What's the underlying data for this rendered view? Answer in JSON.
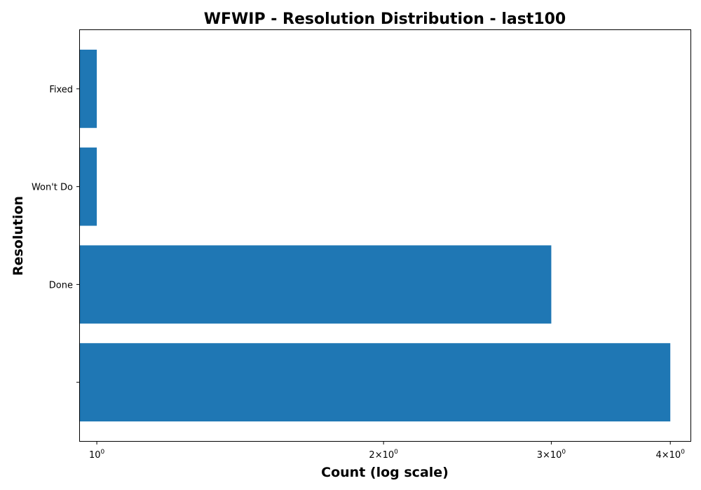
{
  "chart_data": {
    "type": "bar",
    "orientation": "horizontal",
    "title": "WFWIP - Resolution Distribution - last100",
    "xlabel": "Count (log scale)",
    "ylabel": "Resolution",
    "x_scale": "log",
    "xlim": [
      0.96,
      4.2
    ],
    "categories": [
      "",
      "Done",
      "Won't Do",
      "Fixed"
    ],
    "values": [
      4,
      3,
      1,
      1
    ],
    "xticks": [
      {
        "value": 1,
        "base": "10",
        "exp": "0"
      },
      {
        "value": 2,
        "base": "2×10",
        "exp": "0"
      },
      {
        "value": 3,
        "base": "3×10",
        "exp": "0"
      },
      {
        "value": 4,
        "base": "4×10",
        "exp": "0"
      }
    ],
    "bar_color": "#1f77b4",
    "grid": false,
    "legend": false
  }
}
